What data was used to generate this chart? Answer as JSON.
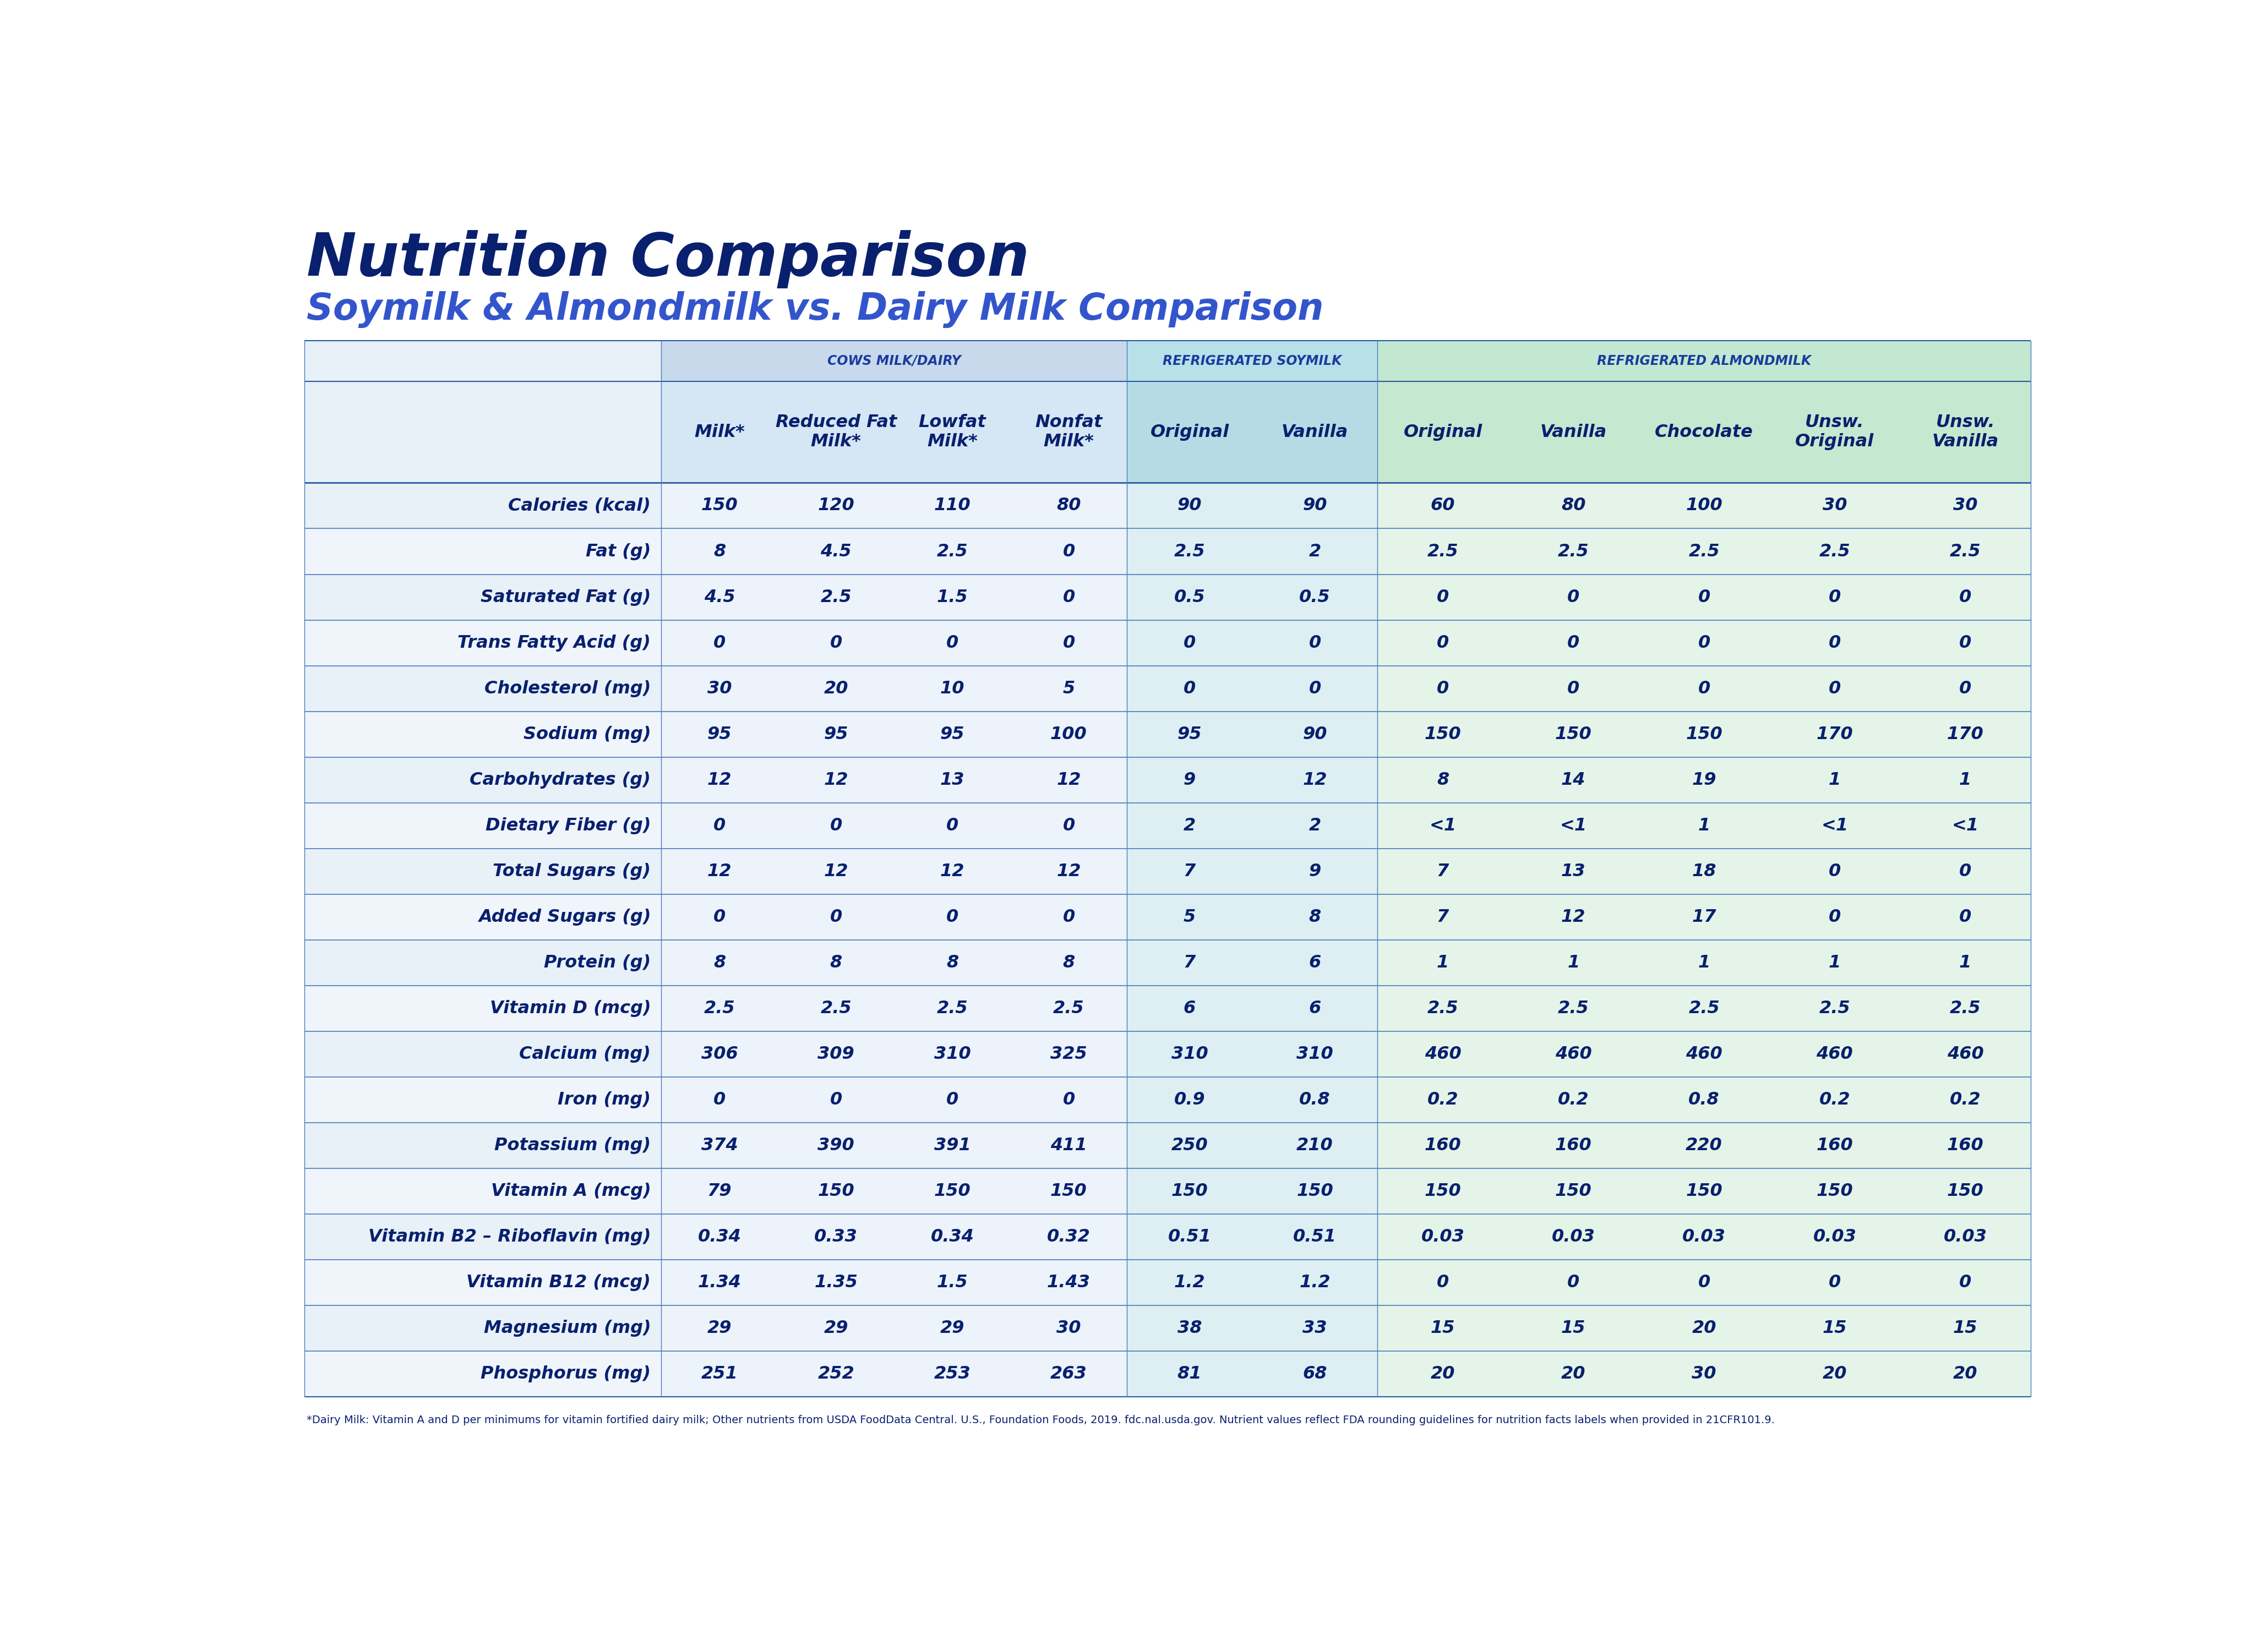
{
  "title1": "Nutrition Comparison",
  "title2": "Soymilk & Almondmilk vs. Dairy Milk Comparison",
  "bg_color": "#ffffff",
  "col_headers": [
    "Milk*",
    "Reduced Fat\nMilk*",
    "Lowfat\nMilk*",
    "Nonfat\nMilk*",
    "Original",
    "Vanilla",
    "Original",
    "Vanilla",
    "Chocolate",
    "Unsw.\nOriginal",
    "Unsw.\nVanilla"
  ],
  "row_labels": [
    "Calories (kcal)",
    "Fat (g)",
    "Saturated Fat (g)",
    "Trans Fatty Acid (g)",
    "Cholesterol (mg)",
    "Sodium (mg)",
    "Carbohydrates (g)",
    "Dietary Fiber (g)",
    "Total Sugars (g)",
    "Added Sugars (g)",
    "Protein (g)",
    "Vitamin D (mcg)",
    "Calcium (mg)",
    "Iron (mg)",
    "Potassium (mg)",
    "Vitamin A (mcg)",
    "Vitamin B2 – Riboflavin (mg)",
    "Vitamin B12 (mcg)",
    "Magnesium (mg)",
    "Phosphorus (mg)"
  ],
  "data": [
    [
      "150",
      "120",
      "110",
      "80",
      "90",
      "90",
      "60",
      "80",
      "100",
      "30",
      "30"
    ],
    [
      "8",
      "4.5",
      "2.5",
      "0",
      "2.5",
      "2",
      "2.5",
      "2.5",
      "2.5",
      "2.5",
      "2.5"
    ],
    [
      "4.5",
      "2.5",
      "1.5",
      "0",
      "0.5",
      "0.5",
      "0",
      "0",
      "0",
      "0",
      "0"
    ],
    [
      "0",
      "0",
      "0",
      "0",
      "0",
      "0",
      "0",
      "0",
      "0",
      "0",
      "0"
    ],
    [
      "30",
      "20",
      "10",
      "5",
      "0",
      "0",
      "0",
      "0",
      "0",
      "0",
      "0"
    ],
    [
      "95",
      "95",
      "95",
      "100",
      "95",
      "90",
      "150",
      "150",
      "150",
      "170",
      "170"
    ],
    [
      "12",
      "12",
      "13",
      "12",
      "9",
      "12",
      "8",
      "14",
      "19",
      "1",
      "1"
    ],
    [
      "0",
      "0",
      "0",
      "0",
      "2",
      "2",
      "<1",
      "<1",
      "1",
      "<1",
      "<1"
    ],
    [
      "12",
      "12",
      "12",
      "12",
      "7",
      "9",
      "7",
      "13",
      "18",
      "0",
      "0"
    ],
    [
      "0",
      "0",
      "0",
      "0",
      "5",
      "8",
      "7",
      "12",
      "17",
      "0",
      "0"
    ],
    [
      "8",
      "8",
      "8",
      "8",
      "7",
      "6",
      "1",
      "1",
      "1",
      "1",
      "1"
    ],
    [
      "2.5",
      "2.5",
      "2.5",
      "2.5",
      "6",
      "6",
      "2.5",
      "2.5",
      "2.5",
      "2.5",
      "2.5"
    ],
    [
      "306",
      "309",
      "310",
      "325",
      "310",
      "310",
      "460",
      "460",
      "460",
      "460",
      "460"
    ],
    [
      "0",
      "0",
      "0",
      "0",
      "0.9",
      "0.8",
      "0.2",
      "0.2",
      "0.8",
      "0.2",
      "0.2"
    ],
    [
      "374",
      "390",
      "391",
      "411",
      "250",
      "210",
      "160",
      "160",
      "220",
      "160",
      "160"
    ],
    [
      "79",
      "150",
      "150",
      "150",
      "150",
      "150",
      "150",
      "150",
      "150",
      "150",
      "150"
    ],
    [
      "0.34",
      "0.33",
      "0.34",
      "0.32",
      "0.51",
      "0.51",
      "0.03",
      "0.03",
      "0.03",
      "0.03",
      "0.03"
    ],
    [
      "1.34",
      "1.35",
      "1.5",
      "1.43",
      "1.2",
      "1.2",
      "0",
      "0",
      "0",
      "0",
      "0"
    ],
    [
      "29",
      "29",
      "29",
      "30",
      "38",
      "33",
      "15",
      "15",
      "20",
      "15",
      "15"
    ],
    [
      "251",
      "252",
      "253",
      "263",
      "81",
      "68",
      "20",
      "20",
      "30",
      "20",
      "20"
    ]
  ],
  "footnote": "*Dairy Milk: Vitamin A and D per minimums for vitamin fortified dairy milk; Other nutrients from USDA FoodData Central. U.S., Foundation Foods, 2019. fdc.nal.usda.gov. Nutrient values reflect FDA rounding guidelines for nutrition facts labels when provided in 21CFR101.9.",
  "group_labels": [
    "COWS MILK/DAIRY",
    "REFRIGERATED SOYMILK",
    "REFRIGERATED ALMONDMILK"
  ],
  "group_col_ranges": [
    [
      0,
      3
    ],
    [
      4,
      5
    ],
    [
      6,
      10
    ]
  ],
  "group_bgs": [
    "#c8d9ec",
    "#b8e0e8",
    "#c2e8d2"
  ],
  "dairy_col_bg": "#d5e6f5",
  "soy_col_bg": "#b5dce5",
  "almond_col_bg": "#c5e8d0",
  "row_bg_even": "#e8f1f8",
  "row_bg_odd": "#f0f5fb",
  "label_col_bg_even": "#e4eef6",
  "label_col_bg_odd": "#edf3f9",
  "dark_blue": "#09206e",
  "medium_blue": "#1a3c9e",
  "light_blue_title": "#3355cc",
  "line_color": "#4a7abf",
  "line_color_thick": "#2a5a9f"
}
